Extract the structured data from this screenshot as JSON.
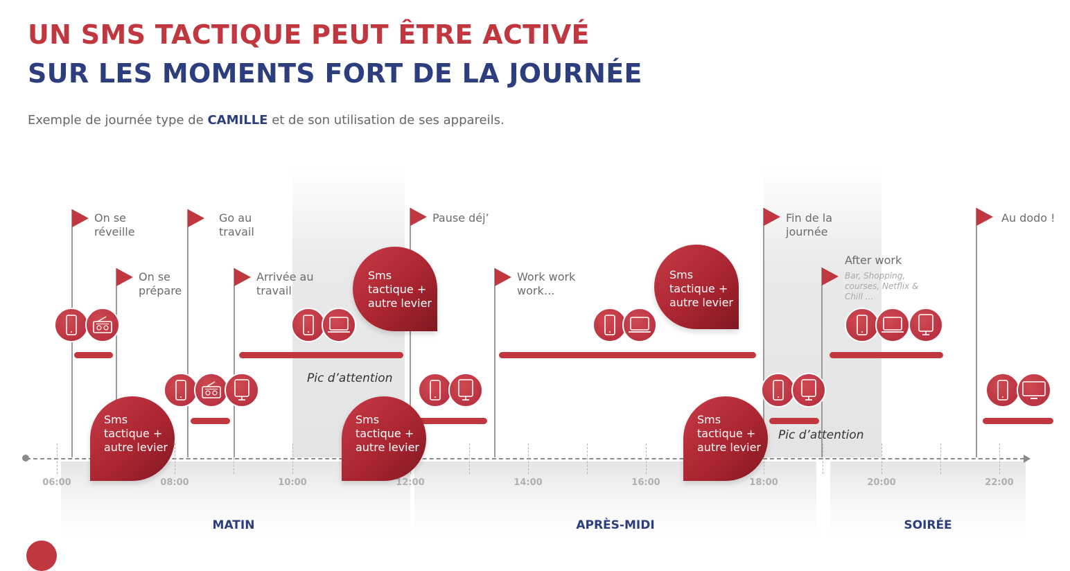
{
  "title": {
    "line1": "UN SMS TACTIQUE PEUT ÊTRE ACTIVÉ",
    "line2": "SUR LES MOMENTS FORT DE LA JOURNÉE"
  },
  "subtitle": {
    "before": "Exemple de journée type de ",
    "name": "CAMILLE",
    "after": " et de son utilisation de ses appareils."
  },
  "colors": {
    "red": "#c0373f",
    "navy": "#2d3e7e",
    "gray_text": "#6b6b6b"
  },
  "axis": {
    "ticks": [
      "06:00",
      "08:00",
      "10:00",
      "12:00",
      "14:00",
      "16:00",
      "18:00",
      "20:00",
      "22:00"
    ]
  },
  "periods": [
    "MATIN",
    "APRÈS-MIDI",
    "SOIRÉE"
  ],
  "events": [
    {
      "label": "On se réveille",
      "time": "06:15"
    },
    {
      "label": "On se prépare",
      "time": "07:00"
    },
    {
      "label": "Go au travail",
      "time": "08:15"
    },
    {
      "label": "Arrivée au travail",
      "time": "09:00"
    },
    {
      "label": "Pause déj’",
      "time": "12:00"
    },
    {
      "label": "Work work work…",
      "time": "13:30"
    },
    {
      "label": "Fin de la journée",
      "time": "18:00"
    },
    {
      "label": "After work",
      "note": "Bar, Shopping, courses, Netflix & Chill …",
      "time": "19:00"
    },
    {
      "label": "Au dodo !",
      "time": "21:45"
    }
  ],
  "device_groups": [
    {
      "devices": [
        "smartphone-icon",
        "radio-icon"
      ]
    },
    {
      "devices": [
        "smartphone-icon",
        "radio-icon",
        "tablet-icon"
      ]
    },
    {
      "devices": [
        "smartphone-icon",
        "laptop-icon"
      ]
    },
    {
      "devices": [
        "smartphone-icon",
        "tablet-icon"
      ]
    },
    {
      "devices": [
        "smartphone-icon",
        "laptop-icon"
      ]
    },
    {
      "devices": [
        "smartphone-icon",
        "tablet-icon"
      ]
    },
    {
      "devices": [
        "smartphone-icon",
        "laptop-icon",
        "tablet-icon"
      ]
    },
    {
      "devices": [
        "smartphone-icon",
        "tv-icon"
      ]
    }
  ],
  "sms_callouts": [
    "Sms tactique + autre levier",
    "Sms tactique + autre levier",
    "Sms tactique + autre levier",
    "Sms tactique + autre levier",
    "Sms tactique + autre levier"
  ],
  "attention_peaks": [
    "Pic d’attention",
    "Pic d’attention"
  ]
}
